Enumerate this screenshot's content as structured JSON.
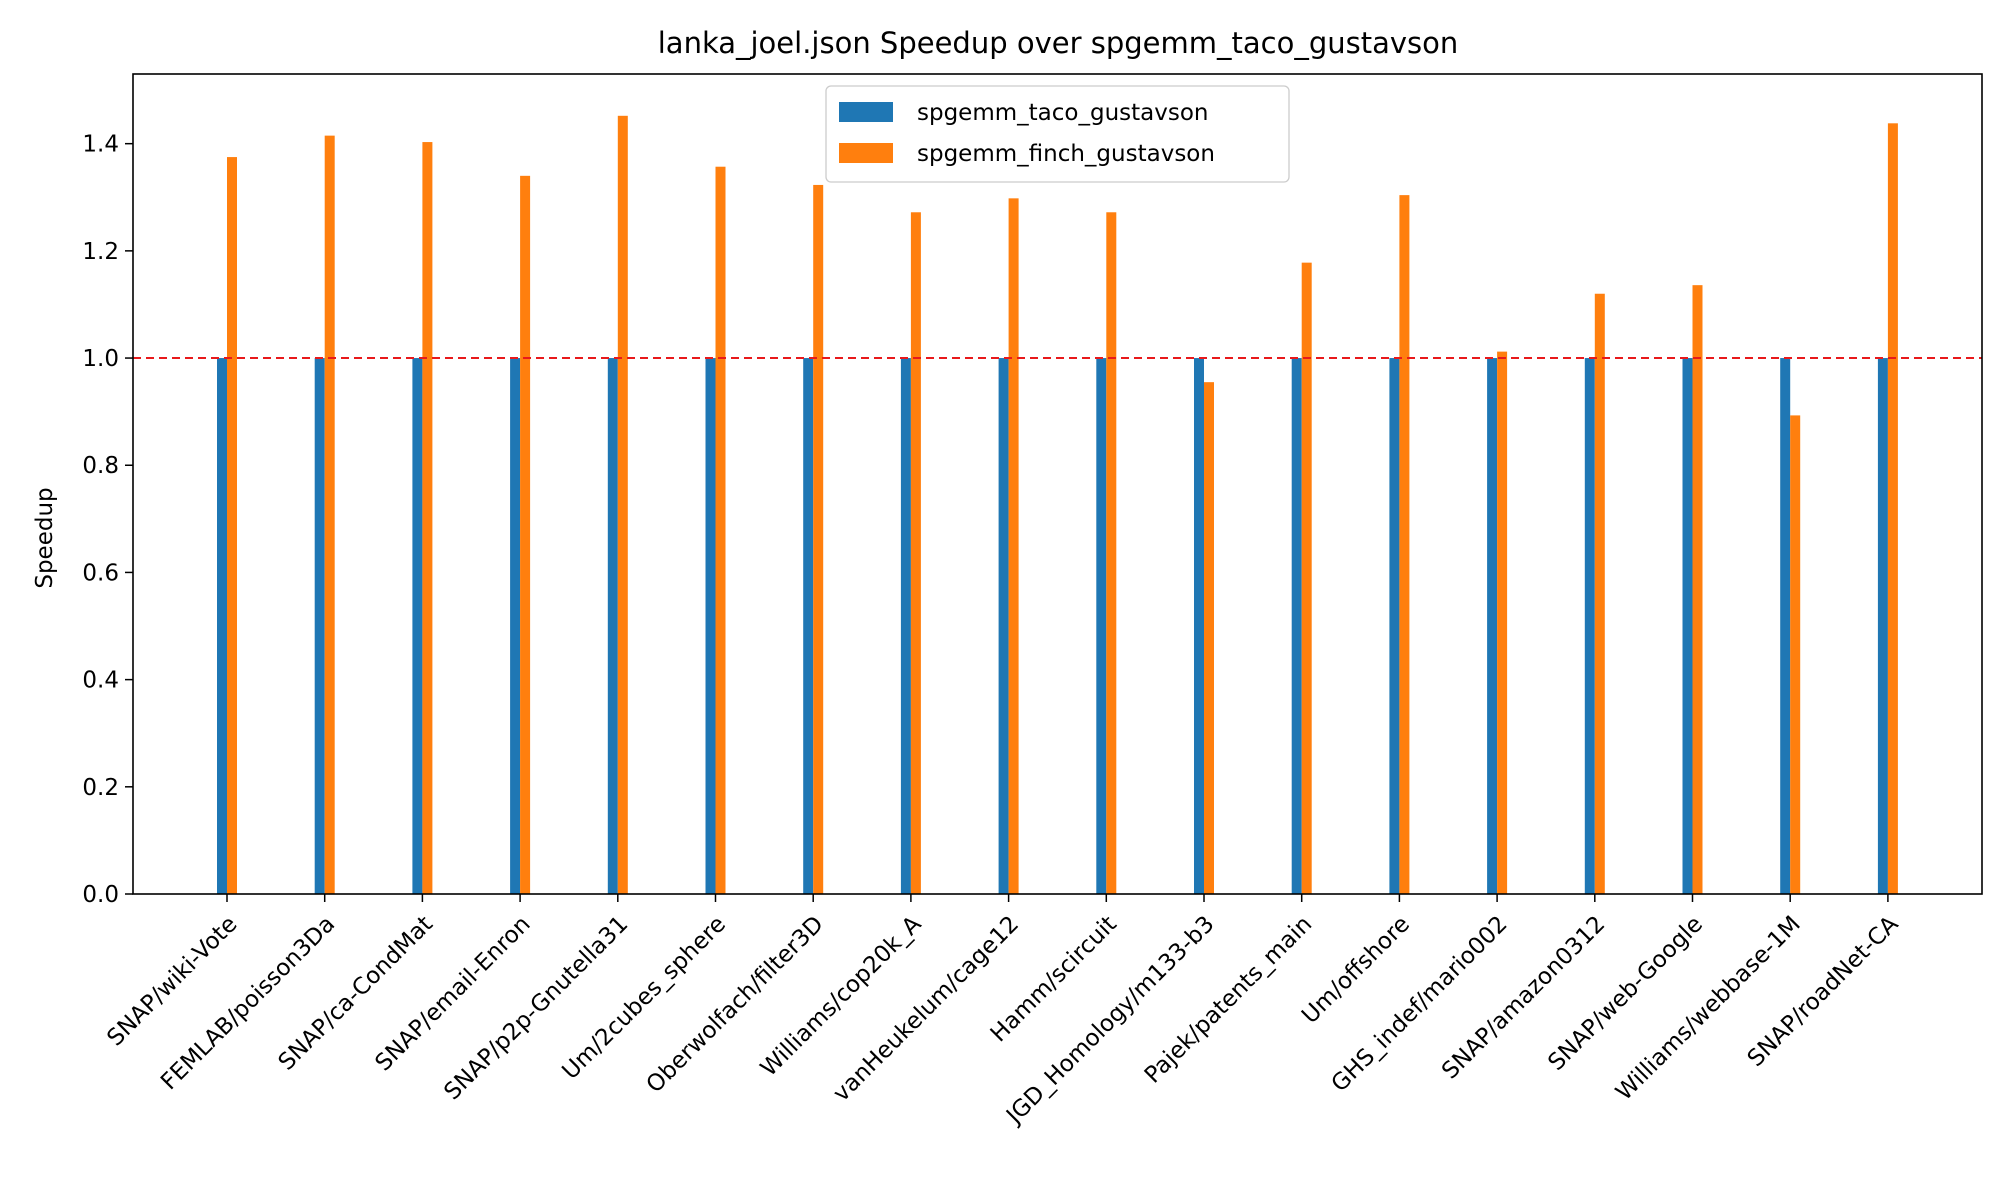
{
  "chart_data": {
    "type": "bar",
    "title": "lanka_joel.json Speedup over spgemm_taco_gustavson",
    "xlabel": "",
    "ylabel": "Speedup",
    "ylim": [
      0,
      1.53
    ],
    "yticks": [
      "0.0",
      "0.2",
      "0.4",
      "0.6",
      "0.8",
      "1.0",
      "1.2",
      "1.4"
    ],
    "grid": false,
    "legend_position": "top-center",
    "reference_line": {
      "y": 1.0,
      "color": "#e8191b",
      "style": "dashed"
    },
    "categories": [
      "SNAP/wiki-Vote",
      "FEMLAB/poisson3Da",
      "SNAP/ca-CondMat",
      "SNAP/email-Enron",
      "SNAP/p2p-Gnutella31",
      "Um/2cubes_sphere",
      "Oberwolfach/filter3D",
      "Williams/cop20k_A",
      "vanHeukelum/cage12",
      "Hamm/scircuit",
      "JGD_Homology/m133-b3",
      "Pajek/patents_main",
      "Um/offshore",
      "GHS_indef/mario002",
      "SNAP/amazon0312",
      "SNAP/web-Google",
      "Williams/webbase-1M",
      "SNAP/roadNet-CA"
    ],
    "series": [
      {
        "name": "spgemm_taco_gustavson",
        "color": "#1f77b4",
        "values": [
          1,
          1,
          1,
          1,
          1,
          1,
          1,
          1,
          1,
          1,
          1,
          1,
          1,
          1,
          1,
          1,
          1,
          1
        ]
      },
      {
        "name": "spgemm_finch_gustavson",
        "color": "#ff7f0e",
        "values": [
          1.375,
          1.415,
          1.403,
          1.34,
          1.452,
          1.357,
          1.323,
          1.272,
          1.298,
          1.272,
          0.955,
          1.178,
          1.304,
          1.012,
          1.12,
          1.136,
          0.893,
          1.438
        ]
      }
    ]
  }
}
